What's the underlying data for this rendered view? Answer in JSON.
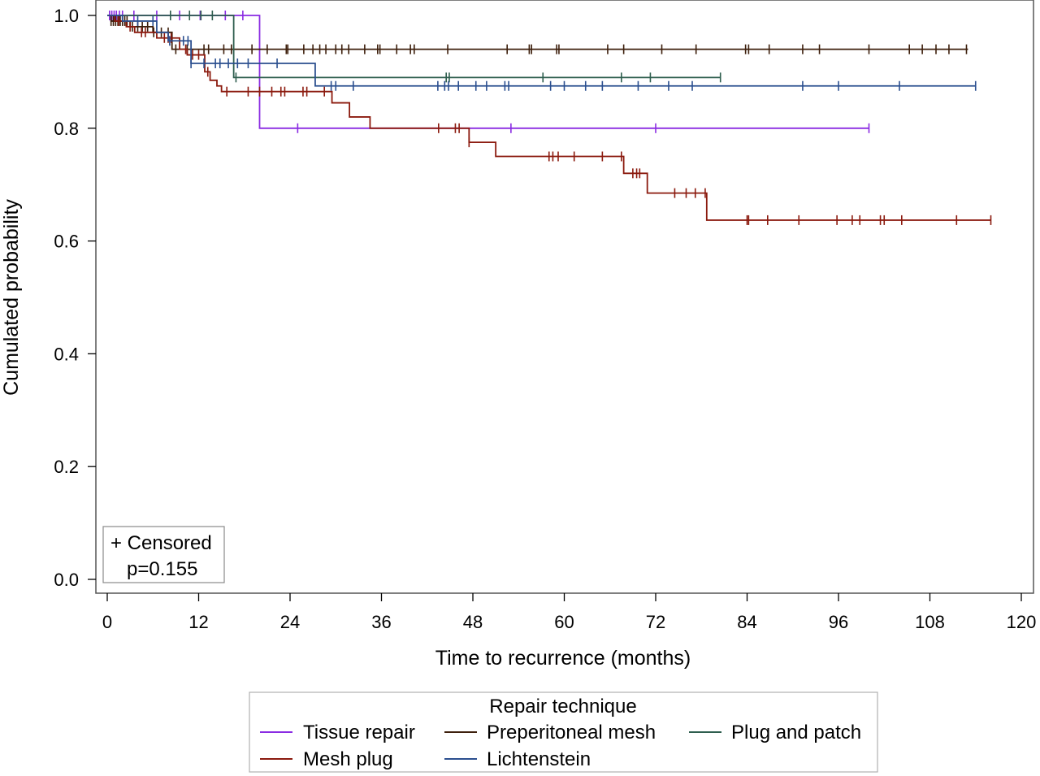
{
  "chart_data": {
    "type": "line",
    "subtype": "kaplan-meier step curves",
    "xlabel": "Time to recurrence (months)",
    "ylabel": "Cumulated probability",
    "xlim": [
      0,
      120
    ],
    "ylim": [
      0,
      1.0
    ],
    "x_ticks": [
      0,
      12,
      24,
      36,
      48,
      60,
      72,
      84,
      96,
      108,
      120
    ],
    "y_ticks": [
      0.0,
      0.2,
      0.4,
      0.6,
      0.8,
      1.0
    ],
    "x_tick_labels": [
      "0",
      "12",
      "24",
      "36",
      "48",
      "60",
      "72",
      "84",
      "96",
      "108",
      "120"
    ],
    "y_tick_labels": [
      "0.0",
      "0.2",
      "0.4",
      "0.6",
      "0.8",
      "1.0"
    ],
    "grid": false,
    "inset": {
      "censored_label": "+ Censored",
      "p_value": "p=0.155"
    },
    "legend": {
      "title": "Repair technique",
      "placement": "bottom"
    },
    "series": [
      {
        "name": "Tissue repair",
        "color": "#8a2be2",
        "steps": [
          [
            0,
            1.0
          ],
          [
            20,
            0.8
          ],
          [
            100,
            0.8
          ]
        ],
        "censored": [
          0.3,
          0.6,
          0.9,
          1.2,
          1.6,
          2.0,
          3.5,
          6.5,
          9.5,
          12.2,
          15.5,
          17.8,
          25,
          53,
          72,
          100
        ]
      },
      {
        "name": "Preperitoneal mesh",
        "color": "#3d1f0c",
        "steps": [
          [
            0,
            1.0
          ],
          [
            0.5,
            0.99
          ],
          [
            3,
            0.98
          ],
          [
            6,
            0.97
          ],
          [
            8.5,
            0.94
          ],
          [
            113,
            0.94
          ]
        ],
        "censored": [
          0.5,
          0.8,
          1.1,
          1.4,
          1.7,
          2.0,
          2.3,
          2.6,
          3.3,
          4.0,
          4.6,
          5.3,
          6.1,
          7.1,
          8.0,
          9.0,
          10.5,
          12.7,
          13.3,
          15.3,
          16.3,
          19.0,
          21.0,
          23.5,
          23.7,
          25.8,
          27.0,
          27.9,
          28.7,
          30.0,
          30.8,
          31.7,
          33.8,
          35.5,
          35.8,
          38.0,
          39.8,
          40.3,
          44.7,
          52.5,
          55.4,
          55.7,
          59.0,
          59.3,
          65.7,
          67.8,
          72.8,
          77.3,
          83.8,
          84.2,
          86.9,
          91.3,
          93.5,
          100.0,
          105.3,
          107.0,
          108.8,
          110.5,
          112.8
        ]
      },
      {
        "name": "Plug and patch",
        "color": "#2e5e4e",
        "steps": [
          [
            0,
            1.0
          ],
          [
            16.6,
            0.89
          ],
          [
            80.5,
            0.89
          ]
        ],
        "censored": [
          8.3,
          10.8,
          12.3,
          13.8,
          16.9,
          44.5,
          44.9,
          57.2,
          67.5,
          71.3,
          80.5
        ]
      },
      {
        "name": "Mesh plug",
        "color": "#8b1a0e",
        "steps": [
          [
            0,
            1.0
          ],
          [
            1,
            0.99
          ],
          [
            2.5,
            0.98
          ],
          [
            3.6,
            0.97
          ],
          [
            6.5,
            0.96
          ],
          [
            9.5,
            0.94
          ],
          [
            10.5,
            0.93
          ],
          [
            12.8,
            0.9
          ],
          [
            13.5,
            0.885
          ],
          [
            14.4,
            0.875
          ],
          [
            15.0,
            0.865
          ],
          [
            29.5,
            0.845
          ],
          [
            31.8,
            0.82
          ],
          [
            34.5,
            0.8
          ],
          [
            47.5,
            0.775
          ],
          [
            51.0,
            0.75
          ],
          [
            67.8,
            0.72
          ],
          [
            70.9,
            0.685
          ],
          [
            78.7,
            0.637
          ],
          [
            116,
            0.637
          ]
        ],
        "censored": [
          1.5,
          3.0,
          4.5,
          5.0,
          7.5,
          8.0,
          8.4,
          10.3,
          11.2,
          12.0,
          13.2,
          15.7,
          18.5,
          20.0,
          21.6,
          22.8,
          23.3,
          25.7,
          26.2,
          28.5,
          43.5,
          45.7,
          46.2,
          47.5,
          58.0,
          58.5,
          59.2,
          61.3,
          65.0,
          67.5,
          69.0,
          69.5,
          69.9,
          74.5,
          76.0,
          77.2,
          78.5,
          84.0,
          84.2,
          86.7,
          90.8,
          95.8,
          97.8,
          98.8,
          101.5,
          102.0,
          104.3,
          111.5,
          116.0
        ]
      },
      {
        "name": "Lichtenstein",
        "color": "#2b4f8f",
        "steps": [
          [
            0,
            1.0
          ],
          [
            2,
            0.99
          ],
          [
            6.5,
            0.97
          ],
          [
            8.0,
            0.955
          ],
          [
            11.0,
            0.915
          ],
          [
            27.3,
            0.875
          ],
          [
            114,
            0.875
          ]
        ],
        "censored": [
          4.0,
          6.0,
          8.2,
          10.0,
          10.6,
          11.0,
          12.7,
          14.2,
          14.8,
          15.9,
          17.1,
          18.5,
          22.3,
          29.4,
          30.0,
          32.3,
          43.4,
          44.3,
          44.8,
          46.1,
          48.4,
          49.8,
          52.2,
          52.7,
          58.2,
          60.0,
          62.8,
          65.0,
          69.7,
          73.7,
          76.8,
          91.3,
          96.0,
          104.0,
          114.0
        ]
      }
    ]
  }
}
